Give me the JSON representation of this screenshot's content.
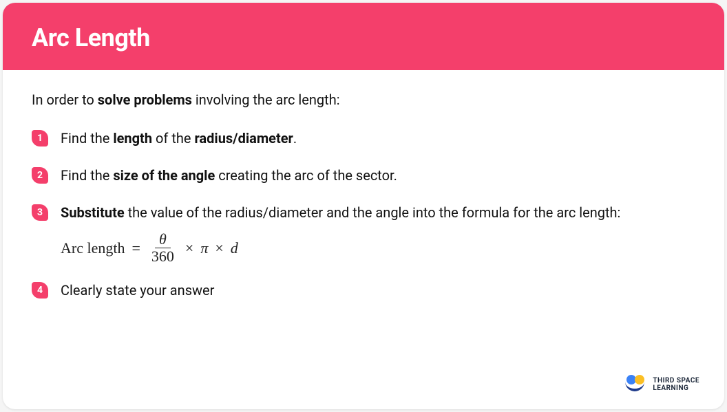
{
  "colors": {
    "header_bg": "#f43f6b",
    "badge_bg": "#f43f6b",
    "text": "#111111",
    "card_bg": "#ffffff"
  },
  "header": {
    "title": "Arc Length"
  },
  "intro": {
    "prefix": "In order to ",
    "bold": "solve problems",
    "suffix": " involving the arc length:"
  },
  "steps": [
    {
      "num": "1",
      "parts": [
        "Find the ",
        "length",
        " of the ",
        "radius/diameter",
        "."
      ]
    },
    {
      "num": "2",
      "parts": [
        "Find the ",
        "size of the angle",
        " creating the arc of the sector."
      ]
    },
    {
      "num": "3",
      "parts": [
        "Substitute",
        " the value of the radius/diameter and the angle into the formula for the arc length:"
      ]
    },
    {
      "num": "4",
      "parts": [
        "Clearly state your answer"
      ]
    }
  ],
  "formula": {
    "label": "Arc length",
    "equals": "=",
    "frac_num": "θ",
    "frac_den": "360",
    "times": "×",
    "pi": "π",
    "var": "d"
  },
  "logo": {
    "line1": "THIRD SPACE",
    "line2": "LEARNING"
  }
}
